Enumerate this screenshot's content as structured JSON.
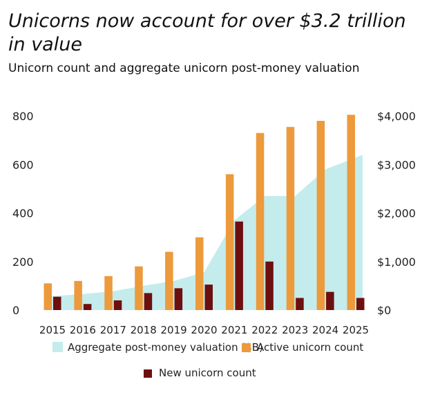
{
  "chart_data": {
    "type": "bar",
    "title": "Unicorns now account for over $3.2 trillion in value",
    "subtitle": "Unicorn count and aggregate unicorn post-money valuation",
    "categories": [
      "2015",
      "2016",
      "2017",
      "2018",
      "2019",
      "2020",
      "2021",
      "2022",
      "2023",
      "2024",
      "2025"
    ],
    "left_axis": {
      "ylim": [
        0,
        800
      ],
      "ticks": [
        "0",
        "200",
        "400",
        "600",
        "800"
      ],
      "tick_values": [
        0,
        200,
        400,
        600,
        800
      ]
    },
    "right_axis": {
      "ylim": [
        0,
        4000
      ],
      "ticks": [
        "$0",
        "$1,000",
        "$2,000",
        "$3,000",
        "$4,000"
      ],
      "tick_values": [
        0,
        1000,
        2000,
        3000,
        4000
      ]
    },
    "series": [
      {
        "name": "Aggregate post-money valuation ($B)",
        "type": "area",
        "axis": "right",
        "color": "#c4ecec",
        "values": [
          280,
          330,
          390,
          500,
          600,
          780,
          1850,
          2350,
          2350,
          2900,
          3200
        ]
      },
      {
        "name": "Active unicorn count",
        "type": "bar",
        "axis": "left",
        "color": "#ec9a3c",
        "values": [
          110,
          120,
          140,
          180,
          240,
          300,
          560,
          730,
          755,
          780,
          805
        ]
      },
      {
        "name": "New unicorn count",
        "type": "bar",
        "axis": "left",
        "color": "#6e0f0f",
        "values": [
          55,
          25,
          40,
          70,
          90,
          105,
          365,
          200,
          50,
          75,
          50
        ]
      }
    ],
    "legend": {
      "placement": "bottom",
      "items": [
        {
          "label": "Aggregate post-money valuation ($B)",
          "color": "#c4ecec"
        },
        {
          "label": "Active unicorn count",
          "color": "#ec9a3c"
        },
        {
          "label": "New unicorn count",
          "color": "#6e0f0f"
        }
      ]
    },
    "grid": false
  }
}
